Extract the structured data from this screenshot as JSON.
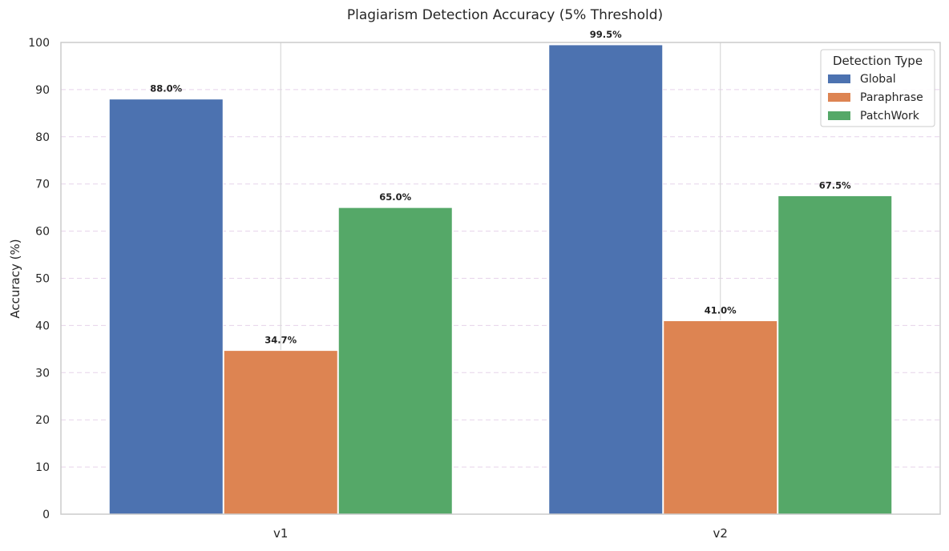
{
  "chart_data": {
    "type": "bar",
    "title": "Plagiarism Detection Accuracy (5% Threshold)",
    "xlabel": "",
    "ylabel": "Accuracy (%)",
    "ylim": [
      0,
      100
    ],
    "yticks": [
      "0",
      "10",
      "20",
      "30",
      "40",
      "50",
      "60",
      "70",
      "80",
      "90",
      "100"
    ],
    "categories": [
      "v1",
      "v2"
    ],
    "series": [
      {
        "name": "Global",
        "values": [
          88.0,
          99.5
        ],
        "labels": [
          "88.0%",
          "99.5%"
        ],
        "color": "#4c72b0"
      },
      {
        "name": "Paraphrase",
        "values": [
          34.7,
          41.0
        ],
        "labels": [
          "34.7%",
          "41.0%"
        ],
        "color": "#dd8452"
      },
      {
        "name": "PatchWork",
        "values": [
          65.0,
          67.5
        ],
        "labels": [
          "65.0%",
          "67.5%"
        ],
        "color": "#55a868"
      }
    ],
    "legend_title": "Detection Type",
    "legend_position": "top-right",
    "grid": "horizontal dashed",
    "grid_color": "#e6d3ea",
    "axis_color": "#cccccc"
  }
}
